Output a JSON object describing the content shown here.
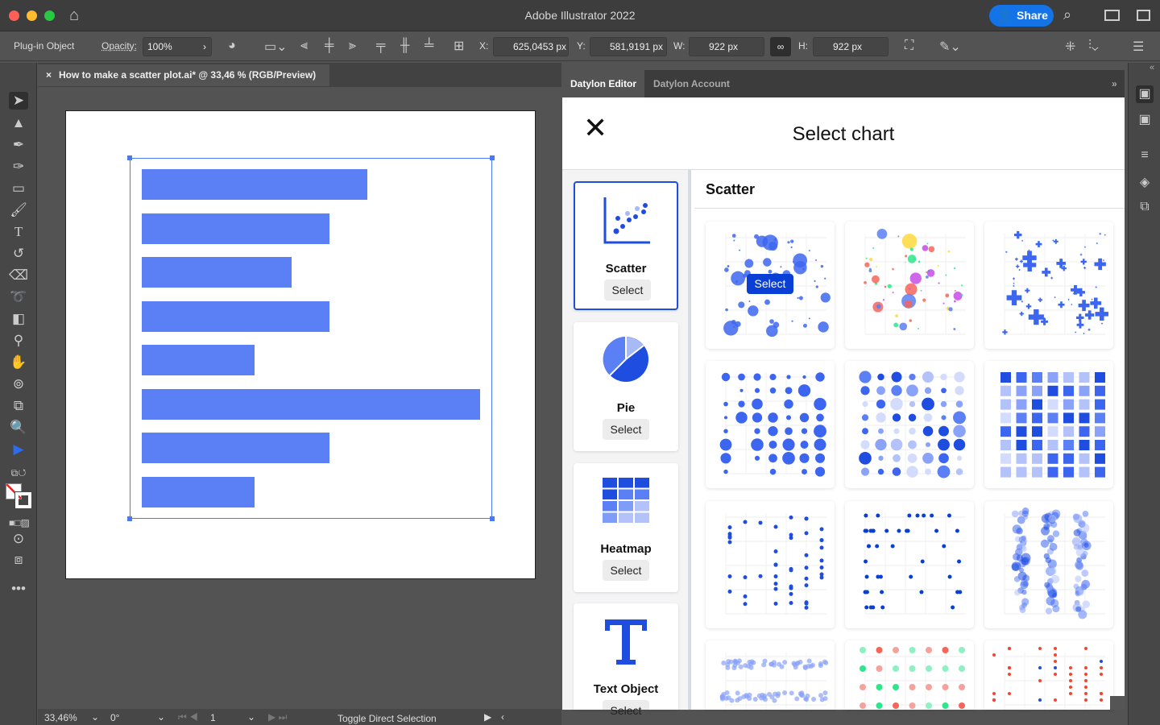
{
  "window": {
    "title": "Adobe Illustrator 2022",
    "share_label": "Share",
    "colors": {
      "close": "#fe5f57",
      "minimize": "#febc2e",
      "maximize": "#28c840",
      "accent": "#1473e6"
    }
  },
  "control_bar": {
    "selection_type": "Plug-in Object",
    "opacity_label": "Opacity:",
    "opacity_value": "100%",
    "x_label": "X:",
    "x_value": "625,0453 px",
    "y_label": "Y:",
    "y_value": "581,9191 px",
    "w_label": "W:",
    "w_value": "922 px",
    "h_label": "H:",
    "h_value": "922 px"
  },
  "document": {
    "tab_title": "How to make a scatter plot.ai* @ 33,46 % (RGB/Preview)",
    "close_icon": "×",
    "bar_color": "#5b7ff5",
    "bar_values": [
      280,
      233,
      186,
      233,
      140,
      420,
      233,
      140
    ]
  },
  "status_bar": {
    "zoom": "33,46%",
    "rotation": "0°",
    "artboard": "1",
    "tool_hint": "Toggle Direct Selection"
  },
  "panel": {
    "tabs": [
      {
        "label": "Datylon Editor",
        "active": true
      },
      {
        "label": "Datylon Account",
        "active": false
      }
    ],
    "title": "Select chart",
    "close_icon": "✕",
    "chart_types": [
      {
        "name": "Scatter",
        "select": "Select",
        "selected": true
      },
      {
        "name": "Pie",
        "select": "Select"
      },
      {
        "name": "Heatmap",
        "select": "Select"
      },
      {
        "name": "Text Object",
        "select": "Select"
      }
    ],
    "section_title": "Scatter",
    "hover_select": "Select",
    "brand_color": "#1e4de0"
  }
}
